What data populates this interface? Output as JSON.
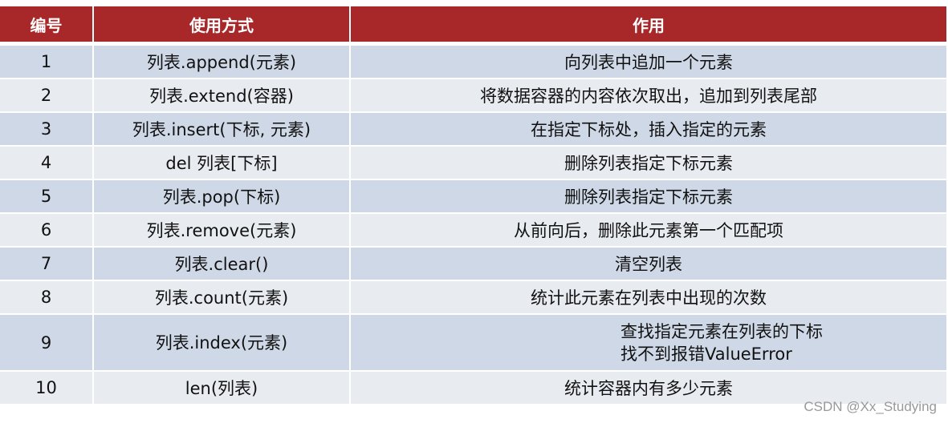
{
  "headers": [
    "编号",
    "使用方式",
    "作用"
  ],
  "rows": [
    {
      "no": "1",
      "usage": "列表.append(元素)",
      "effect": "向列表中追加一个元素"
    },
    {
      "no": "2",
      "usage": "列表.extend(容器)",
      "effect": "将数据容器的内容依次取出，追加到列表尾部"
    },
    {
      "no": "3",
      "usage": "列表.insert(下标, 元素)",
      "effect": "在指定下标处，插入指定的元素"
    },
    {
      "no": "4",
      "usage": "del 列表[下标]",
      "effect": "删除列表指定下标元素"
    },
    {
      "no": "5",
      "usage": "列表.pop(下标)",
      "effect": "删除列表指定下标元素"
    },
    {
      "no": "6",
      "usage": "列表.remove(元素)",
      "effect": "从前向后，删除此元素第一个匹配项"
    },
    {
      "no": "7",
      "usage": "列表.clear()",
      "effect": "清空列表"
    },
    {
      "no": "8",
      "usage": "列表.count(元素)",
      "effect": "统计此元素在列表中出现的次数"
    },
    {
      "no": "9",
      "usage": "列表.index(元素)",
      "effect": "查找指定元素在列表的下标",
      "effect2": "找不到报错ValueError"
    },
    {
      "no": "10",
      "usage": "len(列表)",
      "effect": "统计容器内有多少元素"
    }
  ],
  "watermark": "CSDN @Xx_Studying",
  "colors": {
    "header": "#a8282a",
    "row_odd": "#cfd8e6",
    "row_even": "#e8ebf0"
  }
}
